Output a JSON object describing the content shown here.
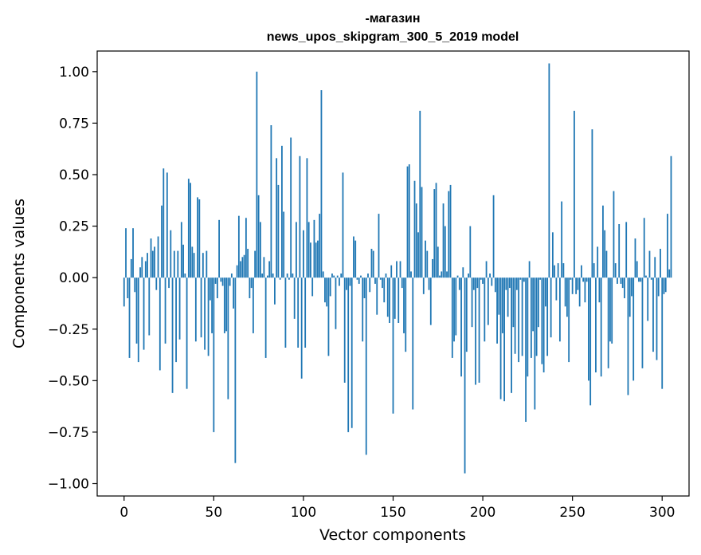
{
  "chart_data": {
    "type": "bar",
    "title_line1": "-магазин",
    "title_line2": "news_upos_skipgram_300_5_2019 model",
    "xlabel": "Vector components",
    "ylabel": "Components values",
    "xlim": [
      -15,
      315
    ],
    "ylim": [
      -1.06,
      1.1
    ],
    "xticks": [
      0,
      50,
      100,
      150,
      200,
      250,
      300
    ],
    "xtick_labels": [
      "0",
      "50",
      "100",
      "150",
      "200",
      "250",
      "300"
    ],
    "yticks": [
      -1.0,
      -0.75,
      -0.5,
      -0.25,
      0.0,
      0.25,
      0.5,
      0.75,
      1.0
    ],
    "ytick_labels": [
      "−1.00",
      "−0.75",
      "−0.50",
      "−0.25",
      "0.00",
      "0.25",
      "0.50",
      "0.75",
      "1.00"
    ],
    "bar_color": "#1f77b4",
    "values": [
      -0.14,
      0.24,
      -0.1,
      -0.39,
      0.09,
      0.24,
      -0.07,
      -0.32,
      -0.41,
      0.05,
      0.1,
      -0.35,
      0.08,
      0.12,
      -0.28,
      0.19,
      0.13,
      0.15,
      -0.06,
      0.2,
      -0.45,
      0.35,
      0.53,
      -0.32,
      0.51,
      -0.05,
      0.23,
      -0.56,
      0.13,
      -0.41,
      0.13,
      -0.3,
      0.27,
      0.16,
      0.02,
      -0.54,
      0.48,
      0.46,
      0.15,
      0.12,
      -0.31,
      0.39,
      0.38,
      -0.29,
      0.12,
      -0.35,
      0.13,
      -0.38,
      -0.11,
      -0.27,
      -0.75,
      -0.03,
      -0.1,
      0.28,
      -0.02,
      -0.04,
      -0.27,
      -0.26,
      -0.59,
      -0.04,
      0.02,
      -0.15,
      -0.9,
      0.06,
      0.3,
      0.08,
      0.1,
      0.11,
      0.29,
      0.14,
      -0.1,
      -0.05,
      -0.27,
      0.13,
      1.0,
      0.4,
      0.27,
      0.02,
      0.1,
      -0.39,
      0.01,
      0.08,
      0.74,
      0.02,
      -0.13,
      0.58,
      0.45,
      -0.01,
      0.64,
      0.32,
      -0.34,
      0.02,
      -0.01,
      0.68,
      0.02,
      -0.2,
      0.27,
      -0.34,
      0.59,
      -0.49,
      0.23,
      -0.34,
      0.58,
      0.27,
      0.17,
      -0.09,
      0.28,
      0.17,
      0.18,
      0.31,
      0.91,
      0.03,
      -0.12,
      -0.14,
      -0.38,
      -0.09,
      0.02,
      0.01,
      -0.25,
      0.01,
      -0.04,
      0.02,
      0.51,
      -0.51,
      -0.06,
      -0.75,
      -0.04,
      -0.73,
      0.2,
      0.18,
      -0.01,
      -0.03,
      0.01,
      -0.31,
      -0.1,
      -0.86,
      0.02,
      -0.07,
      0.14,
      0.13,
      -0.03,
      -0.18,
      0.31,
      -0.01,
      -0.05,
      -0.12,
      0.02,
      -0.19,
      -0.22,
      0.06,
      -0.66,
      -0.2,
      0.08,
      -0.22,
      0.08,
      -0.05,
      -0.27,
      -0.36,
      0.54,
      0.55,
      0.03,
      -0.64,
      0.47,
      0.36,
      0.22,
      0.81,
      0.44,
      -0.08,
      0.18,
      0.13,
      -0.06,
      -0.23,
      0.09,
      0.43,
      0.46,
      0.15,
      0.01,
      0.03,
      0.36,
      0.25,
      0.03,
      0.42,
      0.45,
      -0.39,
      -0.31,
      -0.28,
      0.01,
      -0.06,
      -0.48,
      0.05,
      -0.95,
      -0.36,
      0.02,
      0.25,
      -0.24,
      -0.06,
      -0.52,
      -0.05,
      -0.51,
      -0.01,
      -0.03,
      -0.31,
      0.08,
      -0.23,
      0.02,
      -0.04,
      0.4,
      -0.07,
      -0.32,
      -0.18,
      -0.59,
      -0.27,
      -0.6,
      -0.06,
      -0.19,
      -0.05,
      -0.56,
      -0.24,
      -0.37,
      -0.06,
      -0.41,
      -0.01,
      -0.38,
      -0.02,
      -0.7,
      -0.48,
      0.08,
      -0.39,
      -0.26,
      -0.64,
      -0.38,
      -0.24,
      -0.01,
      -0.42,
      -0.46,
      -0.14,
      -0.38,
      1.04,
      -0.29,
      0.22,
      0.06,
      -0.11,
      0.07,
      -0.31,
      0.37,
      0.07,
      -0.14,
      -0.19,
      -0.41,
      -0.01,
      -0.08,
      0.81,
      -0.08,
      -0.06,
      -0.14,
      0.06,
      -0.02,
      -0.12,
      -0.02,
      -0.5,
      -0.62,
      0.72,
      0.07,
      -0.46,
      0.15,
      -0.12,
      -0.48,
      0.35,
      0.23,
      0.13,
      -0.44,
      -0.31,
      -0.32,
      0.42,
      0.07,
      -0.03,
      0.26,
      -0.03,
      -0.05,
      -0.1,
      0.27,
      -0.57,
      -0.19,
      -0.09,
      -0.5,
      0.19,
      0.08,
      -0.02,
      -0.02,
      -0.44,
      0.29,
      0.01,
      -0.21,
      0.13,
      -0.01,
      -0.36,
      0.1,
      -0.4,
      -0.09,
      0.14,
      -0.54,
      -0.08,
      -0.07,
      0.31,
      0.04,
      0.59
    ]
  }
}
